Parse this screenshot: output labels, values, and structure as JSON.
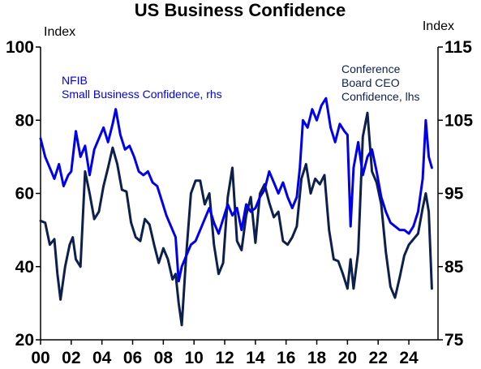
{
  "chart_data": {
    "type": "line",
    "title": "US Business Confidence",
    "left_axis": {
      "unit": "Index",
      "ylim": [
        20,
        100
      ],
      "ticks": [
        20,
        40,
        60,
        80,
        100
      ]
    },
    "right_axis": {
      "unit": "Index",
      "ylim": [
        75,
        115
      ],
      "ticks": [
        75,
        85,
        95,
        105,
        115
      ]
    },
    "x_axis": {
      "xlim": [
        2000,
        2025.9
      ],
      "ticks": [
        2000,
        2002,
        2004,
        2006,
        2008,
        2010,
        2012,
        2014,
        2016,
        2018,
        2020,
        2022,
        2024
      ],
      "tick_labels": [
        "00",
        "02",
        "04",
        "06",
        "08",
        "10",
        "12",
        "14",
        "16",
        "18",
        "20",
        "22",
        "24"
      ]
    },
    "grid": false,
    "series": [
      {
        "name": "NFIB",
        "annotation": [
          "NFIB",
          "Small Business Confidence, rhs"
        ],
        "axis": "right",
        "color": "#0000ee",
        "x": [
          2000.0,
          2000.3,
          2000.6,
          2000.9,
          2001.2,
          2001.5,
          2001.8,
          2002.0,
          2002.3,
          2002.6,
          2002.9,
          2003.2,
          2003.5,
          2003.8,
          2004.1,
          2004.4,
          2004.7,
          2004.9,
          2005.2,
          2005.5,
          2005.8,
          2006.1,
          2006.4,
          2006.7,
          2007.0,
          2007.3,
          2007.6,
          2007.9,
          2008.2,
          2008.5,
          2008.8,
          2009.0,
          2009.2,
          2009.5,
          2009.8,
          2010.1,
          2010.4,
          2010.7,
          2011.0,
          2011.3,
          2011.6,
          2011.9,
          2012.2,
          2012.5,
          2012.8,
          2013.1,
          2013.4,
          2013.7,
          2014.0,
          2014.3,
          2014.6,
          2014.9,
          2015.2,
          2015.5,
          2015.8,
          2016.1,
          2016.4,
          2016.7,
          2016.9,
          2017.1,
          2017.4,
          2017.7,
          2018.0,
          2018.3,
          2018.6,
          2018.9,
          2019.2,
          2019.5,
          2019.8,
          2020.0,
          2020.2,
          2020.4,
          2020.7,
          2021.0,
          2021.3,
          2021.6,
          2021.9,
          2022.2,
          2022.5,
          2022.8,
          2023.1,
          2023.4,
          2023.7,
          2024.0,
          2024.3,
          2024.6,
          2024.9,
          2025.1,
          2025.3,
          2025.5
        ],
        "values": [
          102.5,
          100.0,
          98.5,
          97.0,
          99.0,
          96.0,
          97.5,
          98.0,
          103.5,
          100.0,
          101.5,
          97.5,
          101.0,
          102.5,
          104.0,
          102.0,
          104.5,
          106.5,
          103.0,
          101.0,
          101.5,
          100.0,
          98.0,
          97.5,
          98.0,
          96.5,
          96.0,
          94.0,
          92.0,
          90.5,
          89.0,
          83.0,
          85.0,
          86.5,
          88.0,
          88.5,
          90.0,
          91.5,
          93.0,
          91.0,
          89.5,
          91.5,
          93.5,
          92.0,
          93.0,
          90.0,
          93.5,
          92.5,
          93.0,
          94.5,
          95.5,
          98.0,
          96.5,
          95.0,
          96.5,
          94.5,
          93.0,
          94.5,
          98.5,
          105.0,
          104.0,
          106.5,
          105.0,
          107.0,
          108.0,
          104.0,
          102.0,
          104.5,
          103.5,
          103.0,
          90.5,
          98.5,
          102.0,
          97.5,
          100.0,
          101.0,
          98.0,
          94.5,
          92.5,
          91.0,
          90.5,
          90.0,
          90.0,
          89.5,
          90.5,
          92.5,
          97.0,
          105.0,
          100.0,
          98.5
        ]
      },
      {
        "name": "Conference Board CEO",
        "annotation": [
          "Conference",
          "Board CEO",
          "Confidence, lhs"
        ],
        "axis": "left",
        "color": "#0d1f4d",
        "x": [
          2000.0,
          2000.3,
          2000.6,
          2000.9,
          2001.1,
          2001.3,
          2001.6,
          2001.9,
          2002.1,
          2002.3,
          2002.6,
          2002.9,
          2003.2,
          2003.5,
          2003.8,
          2004.1,
          2004.4,
          2004.7,
          2005.0,
          2005.3,
          2005.6,
          2005.9,
          2006.2,
          2006.5,
          2006.8,
          2007.1,
          2007.4,
          2007.7,
          2008.0,
          2008.3,
          2008.6,
          2008.8,
          2009.0,
          2009.2,
          2009.5,
          2009.8,
          2010.1,
          2010.4,
          2010.7,
          2011.0,
          2011.3,
          2011.6,
          2011.9,
          2012.2,
          2012.5,
          2012.8,
          2013.1,
          2013.4,
          2013.7,
          2014.0,
          2014.3,
          2014.6,
          2014.9,
          2015.2,
          2015.5,
          2015.8,
          2016.1,
          2016.4,
          2016.7,
          2017.0,
          2017.3,
          2017.6,
          2017.9,
          2018.2,
          2018.5,
          2018.8,
          2019.1,
          2019.4,
          2019.7,
          2020.0,
          2020.2,
          2020.4,
          2020.7,
          2021.0,
          2021.3,
          2021.6,
          2021.9,
          2022.2,
          2022.5,
          2022.8,
          2023.1,
          2023.4,
          2023.7,
          2024.0,
          2024.3,
          2024.6,
          2024.9,
          2025.1,
          2025.3,
          2025.5
        ],
        "values": [
          52.5,
          52.0,
          46.0,
          47.5,
          38.0,
          31.0,
          40.0,
          46.0,
          48.0,
          42.0,
          40.0,
          66.0,
          60.0,
          53.0,
          55.0,
          62.0,
          67.0,
          72.5,
          68.0,
          61.0,
          60.5,
          52.0,
          48.0,
          47.0,
          53.0,
          51.5,
          46.0,
          41.0,
          45.0,
          42.0,
          36.5,
          38.0,
          30.0,
          24.0,
          43.5,
          60.0,
          63.5,
          63.5,
          57.0,
          60.0,
          46.0,
          38.0,
          41.0,
          59.0,
          67.0,
          47.0,
          44.5,
          54.0,
          59.0,
          46.5,
          60.0,
          62.5,
          57.5,
          53.5,
          55.0,
          47.0,
          46.0,
          48.0,
          51.0,
          64.0,
          68.0,
          60.0,
          64.0,
          62.5,
          65.0,
          50.0,
          42.0,
          41.5,
          38.0,
          34.0,
          42.0,
          34.0,
          44.0,
          75.5,
          82.0,
          66.0,
          63.0,
          57.0,
          44.0,
          34.5,
          31.5,
          37.0,
          43.0,
          46.0,
          47.5,
          49.0,
          56.0,
          60.0,
          55.0,
          34.0
        ]
      }
    ]
  }
}
